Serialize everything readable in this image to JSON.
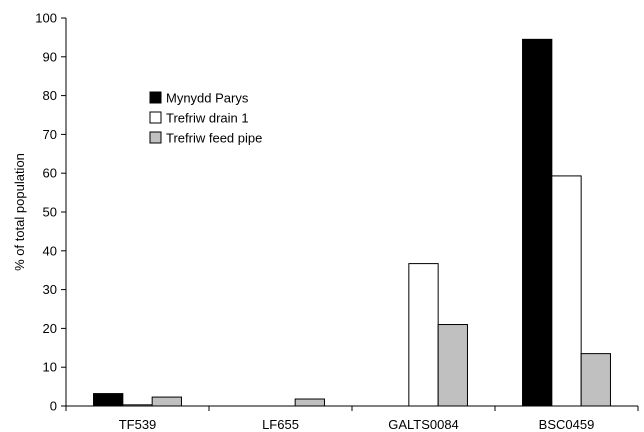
{
  "chart_data": {
    "type": "bar",
    "title": "",
    "xlabel": "",
    "ylabel": "% of total population",
    "ylim": [
      0,
      100
    ],
    "yticks": [
      0,
      10,
      20,
      30,
      40,
      50,
      60,
      70,
      80,
      90,
      100
    ],
    "categories": [
      "TF539",
      "LF655",
      "GALTS0084",
      "BSC0459"
    ],
    "series": [
      {
        "name": "Mynydd Parys",
        "fill": "#000000",
        "values": [
          3.2,
          0,
          0,
          94.5
        ]
      },
      {
        "name": "Trefriw drain 1",
        "fill": "#ffffff",
        "values": [
          0.3,
          0,
          36.7,
          59.3
        ]
      },
      {
        "name": "Trefriw feed pipe",
        "fill": "#c0c0c0",
        "values": [
          2.3,
          1.8,
          21.0,
          13.5
        ]
      }
    ],
    "grid": false,
    "legend_position": "top-left"
  }
}
